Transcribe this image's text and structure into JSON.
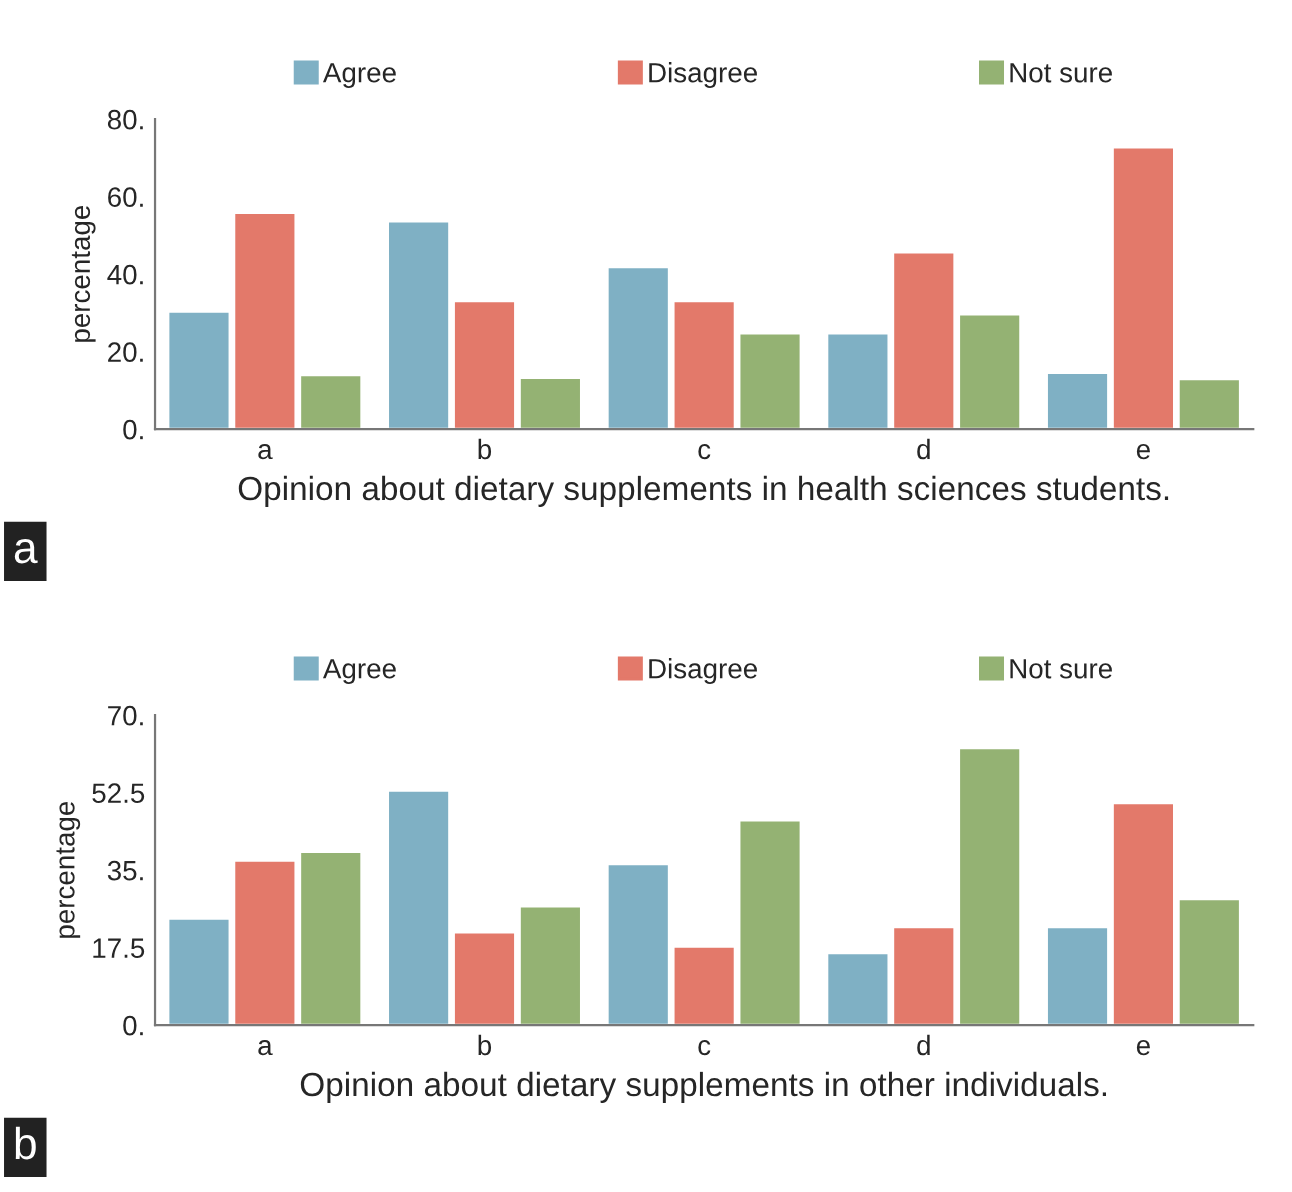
{
  "chart_data": [
    {
      "type": "bar",
      "xlabel": "Opinion about dietary supplements in health sciences students.",
      "ylabel": "percentage",
      "categories": [
        "a",
        "b",
        "c",
        "d",
        "e"
      ],
      "series": [
        {
          "name": "Agree",
          "color": "#7fb0c4",
          "values": [
            30.4,
            53.7,
            41.9,
            24.8,
            14.6
          ]
        },
        {
          "name": "Disagree",
          "color": "#e3796a",
          "values": [
            55.9,
            33.1,
            33.1,
            45.7,
            72.8
          ]
        },
        {
          "name": "Not sure",
          "color": "#94b273",
          "values": [
            14.0,
            13.3,
            24.8,
            29.7,
            13.0
          ]
        }
      ],
      "ylim": [
        0,
        80
      ],
      "yticks": [
        {
          "value": 0,
          "label": "0."
        },
        {
          "value": 20,
          "label": "20."
        },
        {
          "value": 40,
          "label": "40."
        },
        {
          "value": 60,
          "label": "60."
        },
        {
          "value": 80,
          "label": "80."
        }
      ],
      "annotations": [
        "a"
      ],
      "legend": "top",
      "grid": false
    },
    {
      "type": "bar",
      "xlabel": "Opinion about dietary supplements in other individuals.",
      "ylabel": "percentage",
      "categories": [
        "a",
        "b",
        "c",
        "d",
        "e"
      ],
      "series": [
        {
          "name": "Agree",
          "color": "#7fb0c4",
          "values": [
            24.1,
            53.0,
            36.4,
            16.3,
            22.2
          ]
        },
        {
          "name": "Disagree",
          "color": "#e3796a",
          "values": [
            37.2,
            21.0,
            17.8,
            22.2,
            50.2
          ]
        },
        {
          "name": "Not sure",
          "color": "#94b273",
          "values": [
            39.2,
            26.9,
            46.3,
            62.6,
            28.5
          ]
        }
      ],
      "ylim": [
        0,
        70
      ],
      "yticks": [
        {
          "value": 0,
          "label": "0."
        },
        {
          "value": 17.5,
          "label": "17.5"
        },
        {
          "value": 35,
          "label": "35."
        },
        {
          "value": 52.5,
          "label": "52.5"
        },
        {
          "value": 70,
          "label": "70."
        }
      ],
      "annotations": [
        "b"
      ],
      "legend": "top",
      "grid": false
    }
  ]
}
